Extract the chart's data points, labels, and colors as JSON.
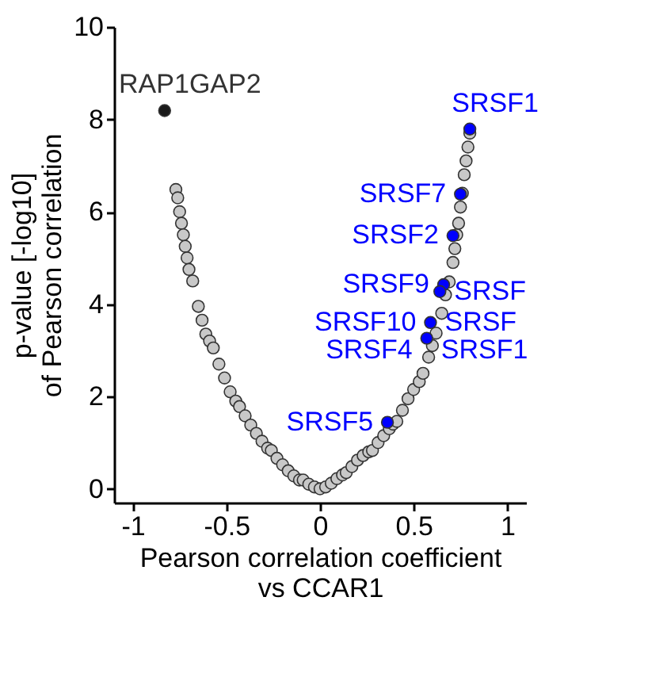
{
  "chart_data": {
    "type": "scatter",
    "xlabel": "Pearson correlation coefficient\nvs CCAR1",
    "ylabel": "p-value [-log10]\nof Pearson correlation",
    "xlim": [
      -1.1,
      1.1
    ],
    "ylim": [
      -0.3,
      10
    ],
    "xticks": [
      -1,
      -0.5,
      0,
      0.5,
      1
    ],
    "yticks": [
      0,
      2,
      4,
      6,
      8,
      10
    ],
    "grid": false,
    "marker": "circle",
    "series": [
      {
        "color": "#c8c8c8",
        "x": [
          -0.77,
          -0.76,
          -0.75,
          -0.74,
          -0.73,
          -0.72,
          -0.71,
          -0.7,
          -0.68,
          -0.65,
          -0.63,
          -0.61,
          -0.59,
          -0.57,
          -0.54,
          -0.51,
          -0.48,
          -0.45,
          -0.43,
          -0.4,
          -0.37,
          -0.34,
          -0.31,
          -0.28,
          -0.26,
          -0.23,
          -0.2,
          -0.17,
          -0.14,
          -0.11,
          -0.09,
          -0.06,
          -0.03,
          0,
          0.03,
          0.06,
          0.09,
          0.12,
          0.14,
          0.17,
          0.2,
          0.23,
          0.26,
          0.28,
          0.31,
          0.34,
          0.37,
          0.39,
          0.41,
          0.44,
          0.47,
          0.5,
          0.53,
          0.55,
          0.58,
          0.6,
          0.62,
          0.65,
          0.67,
          0.69,
          0.71,
          0.72,
          0.73,
          0.74,
          0.75,
          0.76,
          0.77,
          0.78,
          0.79,
          0.8
        ],
        "values": [
          6.48,
          6.3,
          6.0,
          5.75,
          5.5,
          5.25,
          5.0,
          4.75,
          4.5,
          3.95,
          3.65,
          3.35,
          3.2,
          3.05,
          2.7,
          2.4,
          2.1,
          1.9,
          1.78,
          1.58,
          1.38,
          1.2,
          1.03,
          0.88,
          0.83,
          0.66,
          0.52,
          0.39,
          0.28,
          0.19,
          0.19,
          0.1,
          0.04,
          0,
          0.04,
          0.12,
          0.22,
          0.3,
          0.35,
          0.48,
          0.62,
          0.72,
          0.8,
          0.83,
          1.0,
          1.15,
          1.3,
          1.4,
          1.46,
          1.7,
          1.95,
          2.15,
          2.32,
          2.5,
          2.85,
          3.1,
          3.37,
          3.8,
          4.2,
          4.48,
          4.9,
          5.2,
          5.5,
          5.75,
          6.1,
          6.4,
          6.8,
          7.1,
          7.4,
          7.7
        ]
      },
      {
        "color": "#0000ff",
        "x": [
          0.8,
          0.75,
          0.71,
          0.66,
          0.64,
          0.59,
          0.57,
          0.36
        ],
        "values": [
          7.79,
          6.38,
          5.48,
          4.42,
          4.27,
          3.6,
          3.26,
          1.44
        ]
      },
      {
        "color": "#1a1a1a",
        "x": [
          -0.83
        ],
        "values": [
          8.19
        ]
      }
    ],
    "annotations": [
      {
        "text": "RAP1GAP2",
        "x": -0.83,
        "y": 8.19
      },
      {
        "text": "SRSF1",
        "x": 0.8,
        "y": 7.79
      },
      {
        "text": "SRSF7",
        "x": 0.75,
        "y": 6.38
      },
      {
        "text": "SRSF2",
        "x": 0.71,
        "y": 5.48
      },
      {
        "text": "SRSF9",
        "x": 0.66,
        "y": 4.42
      },
      {
        "text": "SRSF",
        "x": 0.64,
        "y": 4.27
      },
      {
        "text": "SRSF10",
        "x": 0.59,
        "y": 3.6
      },
      {
        "text": "SRSF",
        "x": 0.59,
        "y": 3.6
      },
      {
        "text": "SRSF4",
        "x": 0.57,
        "y": 3.26
      },
      {
        "text": "SRSF1",
        "x": 0.57,
        "y": 3.26
      },
      {
        "text": "SRSF5",
        "x": 0.36,
        "y": 1.44
      }
    ]
  }
}
